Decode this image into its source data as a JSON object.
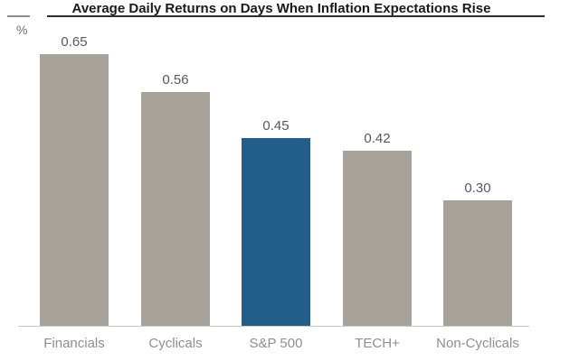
{
  "header": {
    "title": "Average Daily Returns on Days When Inflation Expectations Rise",
    "y_axis_unit": "%"
  },
  "chart_data": {
    "type": "bar",
    "title": "Average Daily Returns on Days When Inflation Expectations Rise",
    "xlabel": "",
    "ylabel": "%",
    "categories": [
      "Financials",
      "Cyclicals",
      "S&P 500",
      "TECH+",
      "Non-Cyclicals"
    ],
    "values": [
      0.65,
      0.56,
      0.45,
      0.42,
      0.3
    ],
    "value_labels": [
      "0.65",
      "0.56",
      "0.45",
      "0.42",
      "0.30"
    ],
    "highlight_index": 2,
    "highlighted_category": "S&P 500",
    "bar_color_default": "#a8a29b",
    "bar_color_highlight": "#235d8a",
    "ylim": [
      0,
      0.7
    ],
    "grid": false,
    "legend": "none",
    "title_color": "#1a1a1a",
    "value_label_color": "#58595b",
    "category_label_color": "#8e8e8e",
    "axis_line_color": "#c9c9c9"
  }
}
